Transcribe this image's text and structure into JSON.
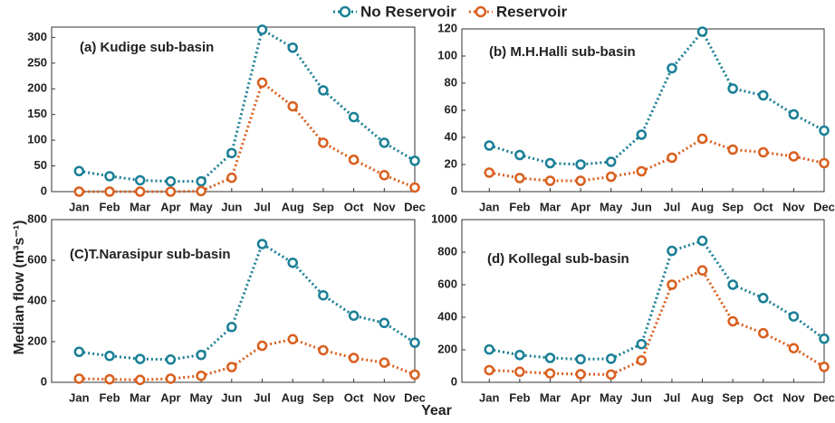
{
  "ylabel": "Median flow (m³s⁻¹)",
  "xlabel": "Year",
  "chart_data": [
    {
      "type": "line",
      "title": "(a) Kudige sub-basin",
      "categories": [
        "Jan",
        "Feb",
        "Mar",
        "Apr",
        "May",
        "Jun",
        "Jul",
        "Aug",
        "Sep",
        "Oct",
        "Nov",
        "Dec"
      ],
      "series": [
        {
          "name": "No Reservoir",
          "color": "#1a7f96",
          "values": [
            40,
            30,
            22,
            20,
            20,
            75,
            315,
            280,
            197,
            145,
            95,
            60
          ]
        },
        {
          "name": "Reservoir",
          "color": "#d95f1e",
          "values": [
            0,
            0,
            0,
            0,
            1,
            27,
            212,
            166,
            95,
            62,
            32,
            8
          ]
        }
      ],
      "ylim": [
        0,
        320
      ],
      "yticks": [
        0,
        50,
        100,
        150,
        200,
        250,
        300
      ]
    },
    {
      "type": "line",
      "title": "(b) M.H.Halli sub-basin",
      "categories": [
        "Jan",
        "Feb",
        "Mar",
        "Apr",
        "May",
        "Jun",
        "Jul",
        "Aug",
        "Sep",
        "Oct",
        "Nov",
        "Dec"
      ],
      "series": [
        {
          "name": "No Reservoir",
          "color": "#1a7f96",
          "values": [
            34,
            27,
            21,
            20,
            22,
            42,
            91,
            118,
            76,
            71,
            57,
            45
          ]
        },
        {
          "name": "Reservoir",
          "color": "#d95f1e",
          "values": [
            14,
            10,
            8,
            8,
            11,
            15,
            25,
            39,
            31,
            29,
            26,
            21
          ]
        }
      ],
      "ylim": [
        0,
        120
      ],
      "yticks": [
        0,
        20,
        40,
        60,
        80,
        100,
        120
      ]
    },
    {
      "type": "line",
      "title": "(C)T.Narasipur sub-basin",
      "categories": [
        "Jan",
        "Feb",
        "Mar",
        "Apr",
        "May",
        "Jun",
        "Jul",
        "Aug",
        "Sep",
        "Oct",
        "Nov",
        "Dec"
      ],
      "series": [
        {
          "name": "No Reservoir",
          "color": "#1a7f96",
          "values": [
            150,
            130,
            115,
            112,
            135,
            272,
            680,
            588,
            428,
            328,
            292,
            195
          ]
        },
        {
          "name": "Reservoir",
          "color": "#d95f1e",
          "values": [
            18,
            15,
            12,
            18,
            32,
            75,
            180,
            212,
            158,
            120,
            97,
            38
          ]
        }
      ],
      "ylim": [
        0,
        800
      ],
      "yticks": [
        0,
        200,
        400,
        600,
        800
      ]
    },
    {
      "type": "line",
      "title": "(d) Kollegal sub-basin",
      "categories": [
        "Jan",
        "Feb",
        "Mar",
        "Apr",
        "May",
        "Jun",
        "Jul",
        "Aug",
        "Sep",
        "Oct",
        "Nov",
        "Dec"
      ],
      "series": [
        {
          "name": "No Reservoir",
          "color": "#1a7f96",
          "values": [
            202,
            168,
            150,
            142,
            145,
            235,
            808,
            870,
            600,
            518,
            405,
            268
          ]
        },
        {
          "name": "Reservoir",
          "color": "#d95f1e",
          "values": [
            75,
            65,
            55,
            50,
            48,
            135,
            600,
            688,
            375,
            302,
            210,
            95
          ]
        }
      ],
      "ylim": [
        0,
        1000
      ],
      "yticks": [
        0,
        200,
        400,
        600,
        800,
        1000
      ]
    }
  ]
}
